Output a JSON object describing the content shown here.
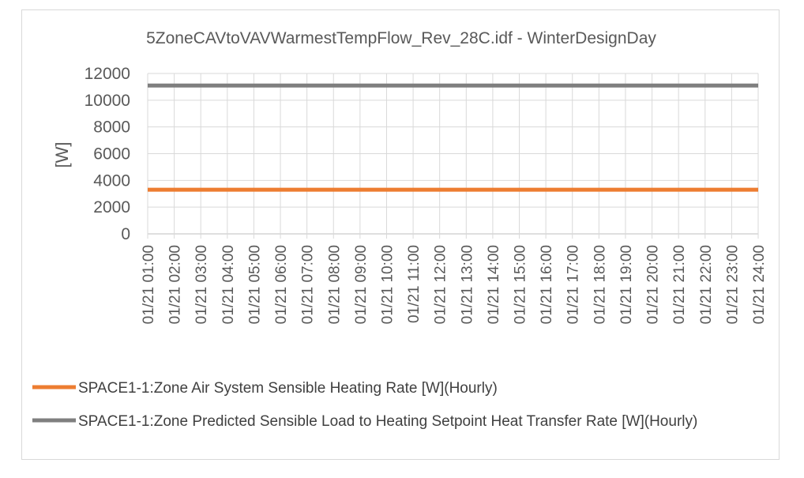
{
  "chart_data": {
    "type": "line",
    "title": "5ZoneCAVtoVAVWarmestTempFlow_Rev_28C.idf - WinterDesignDay",
    "xlabel": "",
    "ylabel": "[W]",
    "ylim": [
      0,
      12000
    ],
    "yticks": [
      "0",
      "2000",
      "4000",
      "6000",
      "8000",
      "10000",
      "12000"
    ],
    "grid": true,
    "legend_position": "bottom",
    "categories": [
      "01/21  01:00",
      "01/21  02:00",
      "01/21  03:00",
      "01/21  04:00",
      "01/21  05:00",
      "01/21  06:00",
      "01/21  07:00",
      "01/21  08:00",
      "01/21  09:00",
      "01/21  10:00",
      "01/21  11:00",
      "01/21  12:00",
      "01/21  13:00",
      "01/21  14:00",
      "01/21  15:00",
      "01/21  16:00",
      "01/21  17:00",
      "01/21  18:00",
      "01/21  19:00",
      "01/21  20:00",
      "01/21  21:00",
      "01/21  22:00",
      "01/21  23:00",
      "01/21  24:00"
    ],
    "series": [
      {
        "name": "SPACE1-1:Zone Air System Sensible Heating Rate [W](Hourly)",
        "color": "#ED7D31",
        "values": [
          3300,
          3300,
          3300,
          3300,
          3300,
          3300,
          3300,
          3300,
          3300,
          3300,
          3300,
          3300,
          3300,
          3300,
          3300,
          3300,
          3300,
          3300,
          3300,
          3300,
          3300,
          3300,
          3300,
          3300
        ]
      },
      {
        "name": "SPACE1-1:Zone Predicted Sensible Load to Heating Setpoint Heat Transfer Rate [W](Hourly)",
        "color": "#7F7F7F",
        "values": [
          11100,
          11100,
          11100,
          11100,
          11100,
          11100,
          11100,
          11100,
          11100,
          11100,
          11100,
          11100,
          11100,
          11100,
          11100,
          11100,
          11100,
          11100,
          11100,
          11100,
          11100,
          11100,
          11100,
          11100
        ]
      }
    ]
  }
}
